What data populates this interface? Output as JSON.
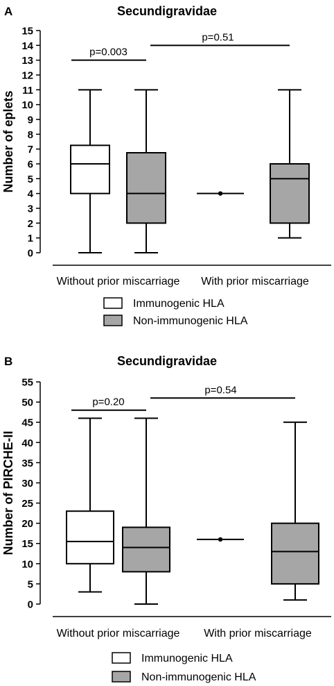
{
  "chart_data": [
    {
      "panel_label": "A",
      "type": "boxplot",
      "title": "Secundigravidae",
      "ylabel": "Number of eplets",
      "ylim": [
        0,
        15
      ],
      "yticks": [
        0,
        1,
        2,
        3,
        4,
        5,
        6,
        7,
        8,
        9,
        10,
        11,
        12,
        13,
        14,
        15
      ],
      "groups": [
        "Without prior miscarriage",
        "With prior miscarriage"
      ],
      "series": [
        {
          "name": "Immunogenic HLA",
          "color": "#ffffff",
          "boxes": [
            {
              "group": "Without prior miscarriage",
              "min": 0,
              "q1": 4,
              "median": 6,
              "q3": 7.25,
              "max": 11
            },
            {
              "group": "With prior miscarriage",
              "min": 4,
              "q1": 4,
              "median": 4,
              "q3": 4,
              "max": 4
            }
          ]
        },
        {
          "name": "Non-immunogenic HLA",
          "color": "#a6a6a6",
          "boxes": [
            {
              "group": "Without prior miscarriage",
              "min": 0,
              "q1": 2,
              "median": 4,
              "q3": 6.75,
              "max": 11
            },
            {
              "group": "With prior miscarriage",
              "min": 1,
              "q1": 2,
              "median": 5,
              "q3": 6,
              "max": 11
            }
          ]
        }
      ],
      "annotations": [
        {
          "text": "p=0.003",
          "y": 13,
          "from": "Without prior miscarriage|Immunogenic HLA",
          "to": "Without prior miscarriage|Non-immunogenic HLA"
        },
        {
          "text": "p=0.51",
          "y": 14,
          "from": "Without prior miscarriage|Non-immunogenic HLA",
          "to": "With prior miscarriage|Non-immunogenic HLA"
        }
      ],
      "legend": [
        "Immunogenic HLA",
        "Non-immunogenic HLA"
      ]
    },
    {
      "panel_label": "B",
      "type": "boxplot",
      "title": "Secundigravidae",
      "ylabel": "Number of PIRCHE-II",
      "ylim": [
        0,
        55
      ],
      "yticks": [
        0,
        5,
        10,
        15,
        20,
        25,
        30,
        35,
        40,
        45,
        50,
        55
      ],
      "groups": [
        "Without prior miscarriage",
        "With prior miscarriage"
      ],
      "series": [
        {
          "name": "Immunogenic HLA",
          "color": "#ffffff",
          "boxes": [
            {
              "group": "Without prior miscarriage",
              "min": 3,
              "q1": 10,
              "median": 15.5,
              "q3": 23,
              "max": 46
            },
            {
              "group": "With prior miscarriage",
              "min": 16,
              "q1": 16,
              "median": 16,
              "q3": 16,
              "max": 16
            }
          ]
        },
        {
          "name": "Non-immunogenic HLA",
          "color": "#a6a6a6",
          "boxes": [
            {
              "group": "Without prior miscarriage",
              "min": 0,
              "q1": 8,
              "median": 14,
              "q3": 19,
              "max": 46
            },
            {
              "group": "With prior miscarriage",
              "min": 1,
              "q1": 5,
              "median": 13,
              "q3": 20,
              "max": 45
            }
          ]
        }
      ],
      "annotations": [
        {
          "text": "p=0.20",
          "y": 48,
          "from": "Without prior miscarriage|Immunogenic HLA",
          "to": "Without prior miscarriage|Non-immunogenic HLA"
        },
        {
          "text": "p=0.54",
          "y": 51,
          "from": "Without prior miscarriage|Non-immunogenic HLA",
          "to": "With prior miscarriage|Non-immunogenic HLA"
        }
      ],
      "legend": [
        "Immunogenic HLA",
        "Non-immunogenic HLA"
      ]
    }
  ]
}
